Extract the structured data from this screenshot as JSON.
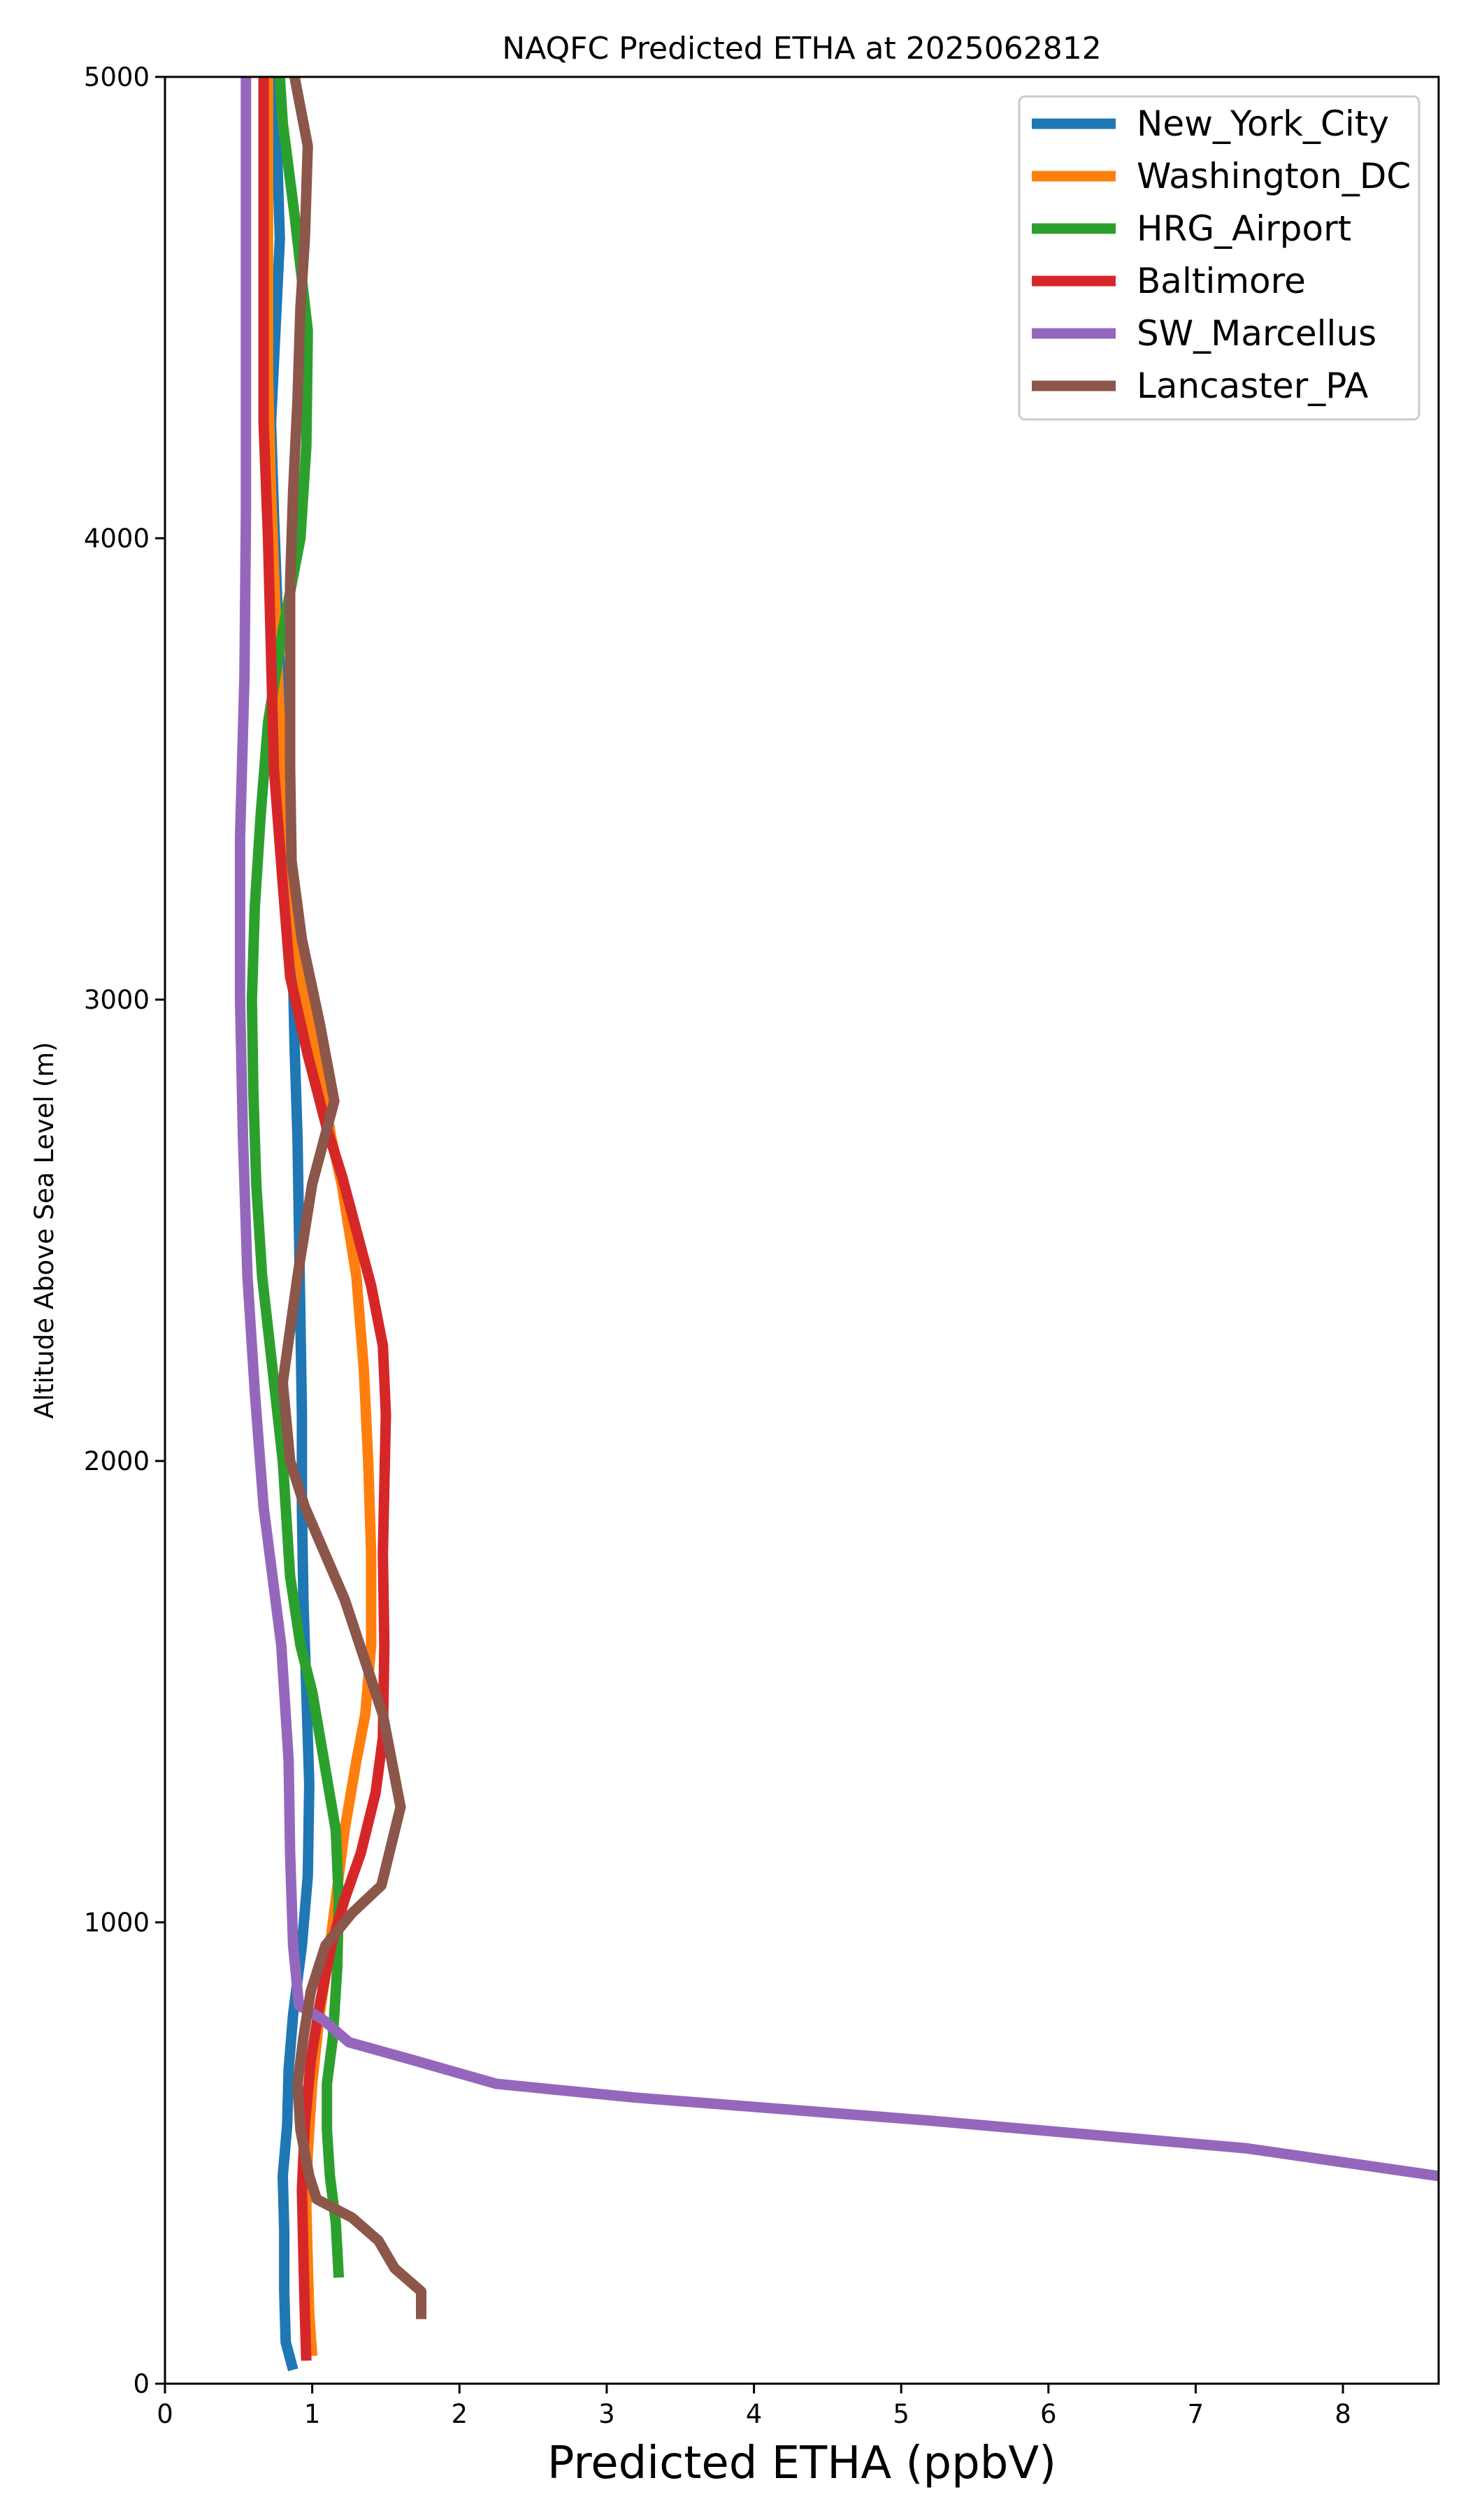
{
  "chart_data": {
    "type": "line",
    "title": "NAQFC Predicted ETHA at 2025062812",
    "xlabel": "Predicted ETHA (ppbV)",
    "ylabel": "Altitude Above Sea Level (m)",
    "xlim": [
      0,
      8.65
    ],
    "ylim": [
      0,
      5000
    ],
    "xticks": [
      0,
      1,
      2,
      3,
      4,
      5,
      6,
      7,
      8
    ],
    "yticks": [
      0,
      1000,
      2000,
      3000,
      4000,
      5000
    ],
    "grid": false,
    "legend_position": "top-right",
    "series": [
      {
        "name": "New_York_City",
        "color": "#1f77b4",
        "points": [
          [
            0.87,
            30
          ],
          [
            0.82,
            90
          ],
          [
            0.81,
            200
          ],
          [
            0.81,
            330
          ],
          [
            0.8,
            450
          ],
          [
            0.83,
            560
          ],
          [
            0.84,
            680
          ],
          [
            0.87,
            800
          ],
          [
            0.93,
            950
          ],
          [
            0.97,
            1100
          ],
          [
            0.98,
            1300
          ],
          [
            0.96,
            1500
          ],
          [
            0.94,
            1700
          ],
          [
            0.93,
            1900
          ],
          [
            0.93,
            2100
          ],
          [
            0.92,
            2300
          ],
          [
            0.91,
            2500
          ],
          [
            0.9,
            2700
          ],
          [
            0.88,
            2900
          ],
          [
            0.87,
            3050
          ],
          [
            0.84,
            3300
          ],
          [
            0.8,
            3550
          ],
          [
            0.77,
            3800
          ],
          [
            0.74,
            4050
          ],
          [
            0.72,
            4250
          ],
          [
            0.75,
            4450
          ],
          [
            0.78,
            4650
          ],
          [
            0.76,
            4850
          ],
          [
            0.72,
            5000
          ]
        ]
      },
      {
        "name": "Washington_DC",
        "color": "#ff7f0e",
        "points": [
          [
            1.0,
            60
          ],
          [
            0.98,
            150
          ],
          [
            0.97,
            260
          ],
          [
            0.96,
            380
          ],
          [
            0.97,
            500
          ],
          [
            1.0,
            650
          ],
          [
            1.05,
            800
          ],
          [
            1.12,
            950
          ],
          [
            1.18,
            1100
          ],
          [
            1.22,
            1200
          ],
          [
            1.3,
            1350
          ],
          [
            1.36,
            1450
          ],
          [
            1.4,
            1600
          ],
          [
            1.4,
            1800
          ],
          [
            1.38,
            2000
          ],
          [
            1.35,
            2200
          ],
          [
            1.3,
            2400
          ],
          [
            1.2,
            2600
          ],
          [
            1.13,
            2700
          ],
          [
            1.05,
            2850
          ],
          [
            0.95,
            3000
          ],
          [
            0.88,
            3150
          ],
          [
            0.82,
            3350
          ],
          [
            0.78,
            3600
          ],
          [
            0.75,
            3850
          ],
          [
            0.72,
            4100
          ],
          [
            0.7,
            4350
          ],
          [
            0.7,
            4600
          ],
          [
            0.7,
            4850
          ],
          [
            0.7,
            5000
          ]
        ]
      },
      {
        "name": "HRG_Airport",
        "color": "#2ca02c",
        "points": [
          [
            1.18,
            230
          ],
          [
            1.16,
            350
          ],
          [
            1.12,
            450
          ],
          [
            1.1,
            550
          ],
          [
            1.1,
            650
          ],
          [
            1.14,
            750
          ],
          [
            1.17,
            900
          ],
          [
            1.18,
            1050
          ],
          [
            1.16,
            1200
          ],
          [
            1.08,
            1350
          ],
          [
            1.0,
            1500
          ],
          [
            0.92,
            1600
          ],
          [
            0.85,
            1750
          ],
          [
            0.8,
            2000
          ],
          [
            0.73,
            2200
          ],
          [
            0.66,
            2400
          ],
          [
            0.62,
            2600
          ],
          [
            0.6,
            2800
          ],
          [
            0.59,
            3000
          ],
          [
            0.61,
            3200
          ],
          [
            0.65,
            3400
          ],
          [
            0.7,
            3600
          ],
          [
            0.8,
            3800
          ],
          [
            0.92,
            4000
          ],
          [
            0.96,
            4200
          ],
          [
            0.97,
            4450
          ],
          [
            0.88,
            4700
          ],
          [
            0.8,
            4900
          ],
          [
            0.78,
            5000
          ]
        ]
      },
      {
        "name": "Baltimore",
        "color": "#d62728",
        "points": [
          [
            0.96,
            50
          ],
          [
            0.95,
            150
          ],
          [
            0.94,
            280
          ],
          [
            0.93,
            420
          ],
          [
            0.95,
            560
          ],
          [
            0.99,
            700
          ],
          [
            1.05,
            820
          ],
          [
            1.13,
            950
          ],
          [
            1.22,
            1050
          ],
          [
            1.33,
            1150
          ],
          [
            1.43,
            1280
          ],
          [
            1.48,
            1400
          ],
          [
            1.49,
            1600
          ],
          [
            1.48,
            1800
          ],
          [
            1.5,
            2100
          ],
          [
            1.48,
            2250
          ],
          [
            1.4,
            2380
          ],
          [
            1.3,
            2500
          ],
          [
            1.2,
            2620
          ],
          [
            1.1,
            2720
          ],
          [
            0.97,
            2880
          ],
          [
            0.85,
            3050
          ],
          [
            0.8,
            3250
          ],
          [
            0.74,
            3500
          ],
          [
            0.72,
            3750
          ],
          [
            0.7,
            4000
          ],
          [
            0.67,
            4250
          ],
          [
            0.67,
            4500
          ],
          [
            0.67,
            4750
          ],
          [
            0.67,
            5000
          ]
        ]
      },
      {
        "name": "SW_Marcellus",
        "color": "#9467bd",
        "points": [
          [
            8.65,
            450
          ],
          [
            7.35,
            510
          ],
          [
            5.2,
            570
          ],
          [
            3.2,
            620
          ],
          [
            2.25,
            650
          ],
          [
            1.7,
            700
          ],
          [
            1.25,
            740
          ],
          [
            1.07,
            790
          ],
          [
            0.91,
            820
          ],
          [
            0.87,
            950
          ],
          [
            0.85,
            1150
          ],
          [
            0.84,
            1350
          ],
          [
            0.79,
            1600
          ],
          [
            0.67,
            1900
          ],
          [
            0.61,
            2150
          ],
          [
            0.56,
            2400
          ],
          [
            0.53,
            2700
          ],
          [
            0.51,
            3000
          ],
          [
            0.51,
            3350
          ],
          [
            0.54,
            3700
          ],
          [
            0.55,
            4050
          ],
          [
            0.55,
            4400
          ],
          [
            0.55,
            4750
          ],
          [
            0.55,
            5000
          ]
        ]
      },
      {
        "name": "Lancaster_PA",
        "color": "#8c564b",
        "points": [
          [
            1.74,
            140
          ],
          [
            1.74,
            200
          ],
          [
            1.56,
            250
          ],
          [
            1.45,
            310
          ],
          [
            1.27,
            360
          ],
          [
            1.03,
            400
          ],
          [
            0.98,
            450
          ],
          [
            0.92,
            550
          ],
          [
            0.9,
            650
          ],
          [
            0.94,
            750
          ],
          [
            0.99,
            850
          ],
          [
            1.09,
            950
          ],
          [
            1.27,
            1020
          ],
          [
            1.47,
            1080
          ],
          [
            1.6,
            1250
          ],
          [
            1.48,
            1450
          ],
          [
            1.22,
            1700
          ],
          [
            0.95,
            1900
          ],
          [
            0.85,
            2000
          ],
          [
            0.8,
            2170
          ],
          [
            0.9,
            2400
          ],
          [
            1.0,
            2600
          ],
          [
            1.15,
            2780
          ],
          [
            1.05,
            2950
          ],
          [
            0.93,
            3130
          ],
          [
            0.86,
            3300
          ],
          [
            0.85,
            3500
          ],
          [
            0.85,
            3700
          ],
          [
            0.85,
            3900
          ],
          [
            0.87,
            4100
          ],
          [
            0.9,
            4300
          ],
          [
            0.92,
            4500
          ],
          [
            0.95,
            4650
          ],
          [
            0.97,
            4850
          ],
          [
            0.88,
            5000
          ]
        ]
      }
    ]
  }
}
